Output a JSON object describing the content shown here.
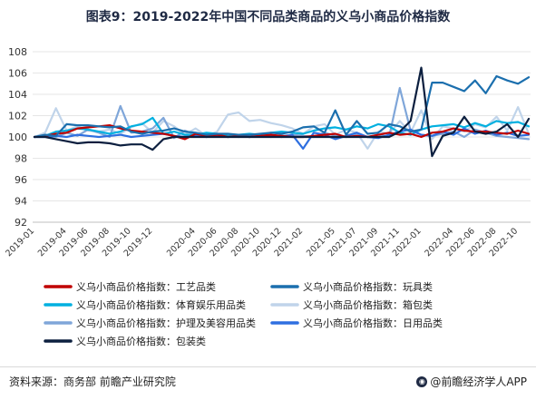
{
  "title": "图表9：2019-2022年中国不同品类商品的义乌小商品价格指数",
  "source": "资料来源：商务部 前瞻产业研究院",
  "brand": "@前瞻经济学人APP",
  "chart_data": {
    "type": "line",
    "ylim": [
      92,
      108
    ],
    "yticks": [
      92,
      94,
      96,
      98,
      100,
      102,
      104,
      106,
      108
    ],
    "x": [
      "2019-01",
      "2019-02",
      "2019-03",
      "2019-04",
      "2019-05",
      "2019-06",
      "2019-07",
      "2019-08",
      "2019-09",
      "2019-10",
      "2019-11",
      "2019-12",
      "2020-01",
      "2020-02",
      "2020-03",
      "2020-04",
      "2020-05",
      "2020-06",
      "2020-07",
      "2020-08",
      "2020-09",
      "2020-10",
      "2020-11",
      "2020-12",
      "2021-01",
      "2021-02",
      "2021-03",
      "2021-04",
      "2021-05",
      "2021-06",
      "2021-07",
      "2021-08",
      "2021-09",
      "2021-10",
      "2021-11",
      "2021-12",
      "2022-01",
      "2022-02",
      "2022-03",
      "2022-04",
      "2022-05",
      "2022-06",
      "2022-07",
      "2022-08",
      "2022-09",
      "2022-10",
      "2022-11"
    ],
    "xtick_labels": [
      "2019-01",
      "2019-04",
      "2019-06",
      "2019-08",
      "2019-10",
      "2019-12",
      "2020-04",
      "2020-06",
      "2020-08",
      "2020-10",
      "2020-12",
      "2021-02",
      "2021-05",
      "2021-07",
      "2021-09",
      "2021-11",
      "2022-01",
      "2022-04",
      "2022-06",
      "2022-08",
      "2022-10"
    ],
    "series": [
      {
        "name": "义乌小商品价格指数：工艺品类",
        "color": "#c00000",
        "values": [
          100.0,
          100.1,
          100.3,
          100.4,
          100.8,
          100.9,
          101.0,
          101.1,
          100.8,
          100.6,
          100.5,
          100.4,
          100.3,
          100.1,
          99.8,
          100.3,
          100.1,
          100.2,
          100.0,
          100.1,
          100.0,
          100.1,
          100.2,
          100.1,
          100.0,
          100.0,
          100.1,
          100.2,
          100.3,
          100.0,
          100.1,
          100.0,
          100.2,
          100.4,
          100.2,
          100.3,
          100.0,
          100.4,
          100.5,
          100.8,
          100.6,
          100.5,
          100.5,
          100.4,
          100.3,
          100.6,
          100.3
        ]
      },
      {
        "name": "义乌小商品价格指数：玩具类",
        "color": "#1b6fae",
        "values": [
          100.0,
          100.2,
          100.1,
          101.2,
          101.1,
          101.1,
          101.0,
          100.9,
          101.0,
          100.5,
          100.3,
          100.5,
          100.6,
          100.8,
          100.5,
          100.4,
          100.2,
          100.3,
          100.3,
          100.2,
          100.2,
          100.3,
          100.4,
          100.3,
          100.5,
          100.9,
          101.0,
          100.4,
          102.5,
          100.2,
          101.5,
          100.3,
          100.4,
          101.2,
          101.0,
          100.5,
          100.7,
          105.1,
          105.1,
          104.7,
          104.3,
          105.3,
          104.1,
          105.7,
          105.3,
          105.0,
          105.6
        ]
      },
      {
        "name": "义乌小商品价格指数：体育娱乐用品类",
        "color": "#00b0e0",
        "values": [
          100.0,
          100.1,
          100.5,
          100.6,
          100.8,
          100.7,
          100.5,
          100.3,
          100.5,
          101.0,
          101.2,
          101.8,
          100.3,
          100.5,
          100.2,
          100.2,
          100.4,
          100.3,
          100.1,
          100.2,
          100.3,
          100.2,
          100.4,
          100.5,
          100.4,
          100.3,
          100.6,
          100.8,
          100.9,
          100.7,
          101.0,
          100.8,
          101.2,
          101.0,
          100.4,
          100.2,
          100.7,
          101.0,
          101.1,
          101.2,
          100.9,
          101.3,
          101.0,
          101.5,
          101.3,
          101.4,
          101.0
        ]
      },
      {
        "name": "义乌小商品价格指数：箱包类",
        "color": "#c0d4ea",
        "values": [
          100.0,
          100.4,
          102.7,
          100.6,
          101.0,
          100.6,
          100.5,
          100.7,
          100.3,
          100.9,
          101.3,
          100.4,
          101.5,
          101.0,
          100.2,
          100.8,
          100.1,
          100.5,
          102.1,
          102.3,
          101.5,
          101.6,
          101.3,
          101.1,
          100.8,
          100.3,
          101.0,
          101.2,
          100.2,
          100.7,
          100.4,
          98.9,
          100.5,
          100.3,
          101.5,
          100.4,
          102.5,
          99.8,
          101.0,
          100.8,
          100.5,
          101.2,
          100.9,
          101.9,
          100.6,
          102.8,
          100.3
        ]
      },
      {
        "name": "义乌小商品价格指数：护理及美容用品类",
        "color": "#7fa6d9",
        "values": [
          100.0,
          100.1,
          100.0,
          100.4,
          100.1,
          100.7,
          100.4,
          100.0,
          102.9,
          100.4,
          100.5,
          100.8,
          101.8,
          99.9,
          100.6,
          100.2,
          100.0,
          100.2,
          100.1,
          100.0,
          100.1,
          100.2,
          100.0,
          100.1,
          100.2,
          100.1,
          100.0,
          100.4,
          100.1,
          100.0,
          100.3,
          100.0,
          100.2,
          100.0,
          104.6,
          100.6,
          100.2,
          100.1,
          100.3,
          100.5,
          100.0,
          100.7,
          100.4,
          100.1,
          100.0,
          99.9,
          99.8
        ]
      },
      {
        "name": "义乌小商品价格指数：日用品类",
        "color": "#2e6fe0",
        "values": [
          100.0,
          100.0,
          100.1,
          100.0,
          100.2,
          100.1,
          100.0,
          100.1,
          100.2,
          100.0,
          100.1,
          100.2,
          100.3,
          100.1,
          100.0,
          100.1,
          100.0,
          100.1,
          100.0,
          100.1,
          100.0,
          100.1,
          100.1,
          100.0,
          100.2,
          98.9,
          100.4,
          100.2,
          99.8,
          100.1,
          100.4,
          100.0,
          99.9,
          100.2,
          100.5,
          100.7,
          100.2,
          100.1,
          100.5,
          100.2,
          100.8,
          100.3,
          100.6,
          100.2,
          100.4,
          100.1,
          100.2
        ]
      },
      {
        "name": "义乌小商品价格指数：包装类",
        "color": "#0c1f3f",
        "values": [
          100.0,
          100.0,
          99.8,
          99.6,
          99.4,
          99.5,
          99.5,
          99.4,
          99.2,
          99.3,
          99.3,
          98.8,
          99.8,
          100.0,
          100.0,
          100.0,
          100.0,
          100.0,
          100.0,
          100.0,
          100.0,
          100.0,
          100.0,
          100.0,
          100.0,
          100.0,
          100.0,
          100.0,
          100.0,
          100.0,
          100.0,
          100.0,
          100.0,
          100.0,
          100.5,
          101.5,
          106.5,
          98.2,
          100.1,
          100.4,
          101.9,
          100.5,
          100.3,
          100.5,
          101.2,
          100.0,
          101.7
        ]
      }
    ]
  }
}
